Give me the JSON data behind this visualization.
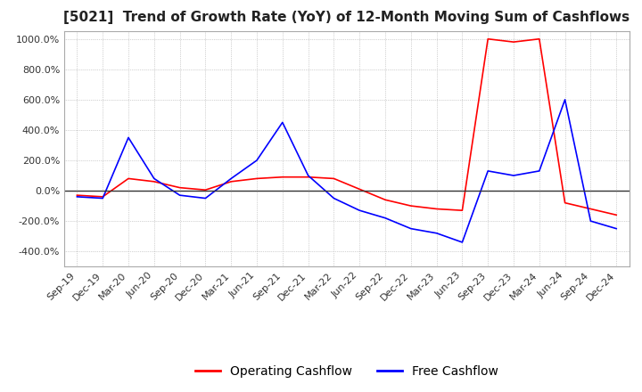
{
  "title": "[5021]  Trend of Growth Rate (YoY) of 12-Month Moving Sum of Cashflows",
  "ylim": [
    -500,
    1050
  ],
  "yticks": [
    -400,
    -200,
    0,
    200,
    400,
    600,
    800,
    1000
  ],
  "legend_labels": [
    "Operating Cashflow",
    "Free Cashflow"
  ],
  "legend_colors": [
    "#ff0000",
    "#0000ff"
  ],
  "background_color": "#ffffff",
  "plot_bg_color": "#ffffff",
  "x_labels": [
    "Sep-19",
    "Dec-19",
    "Mar-20",
    "Jun-20",
    "Sep-20",
    "Dec-20",
    "Mar-21",
    "Jun-21",
    "Sep-21",
    "Dec-21",
    "Mar-22",
    "Jun-22",
    "Sep-22",
    "Dec-22",
    "Mar-23",
    "Jun-23",
    "Sep-23",
    "Dec-23",
    "Mar-24",
    "Jun-24",
    "Sep-24",
    "Dec-24"
  ],
  "operating_cashflow": [
    -30,
    -40,
    80,
    60,
    20,
    5,
    60,
    80,
    90,
    90,
    80,
    10,
    -60,
    -100,
    -120,
    -130,
    1000,
    980,
    1000,
    -80,
    -120,
    -160
  ],
  "free_cashflow": [
    -40,
    -50,
    350,
    80,
    -30,
    -50,
    80,
    200,
    450,
    100,
    -50,
    -130,
    -180,
    -250,
    -280,
    -340,
    130,
    100,
    130,
    600,
    -200,
    -250
  ]
}
